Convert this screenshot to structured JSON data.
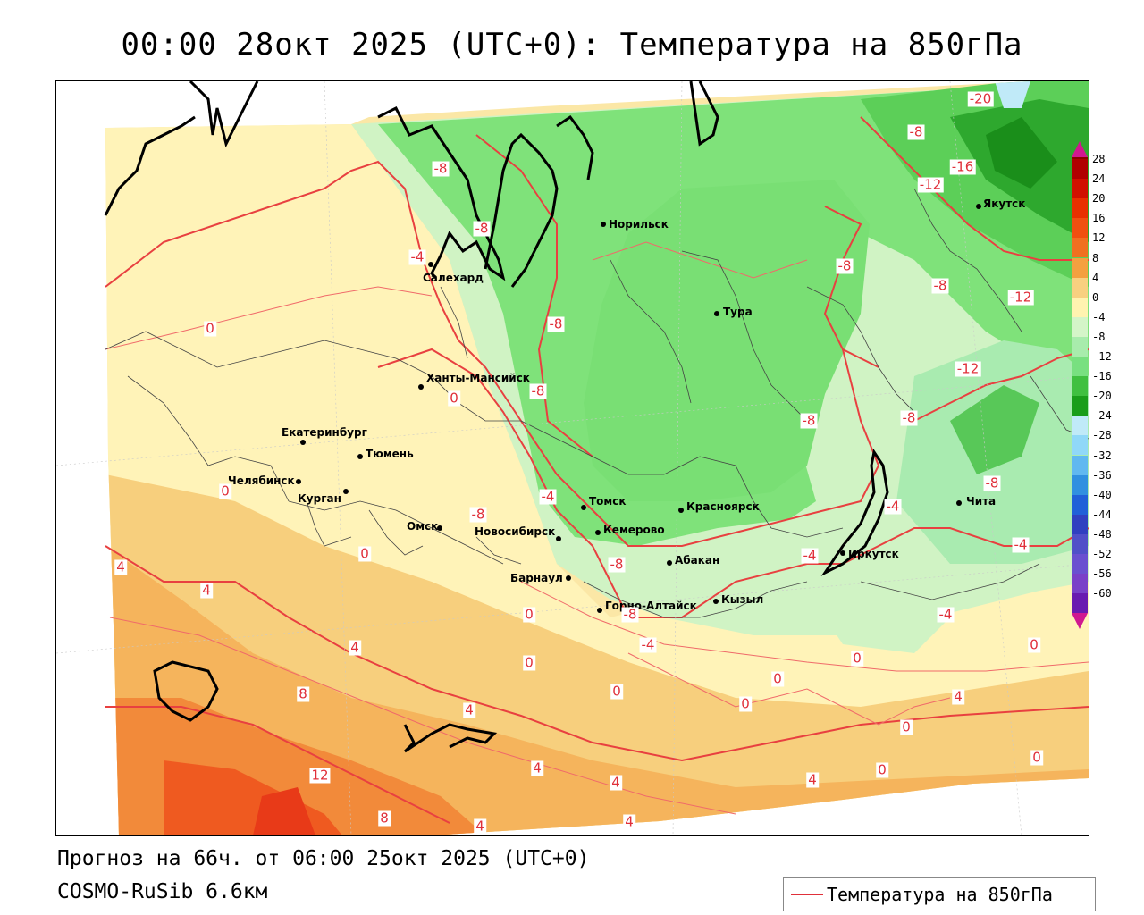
{
  "title": "00:00 28окт 2025 (UTC+0): Температура на 850гПа",
  "footer": {
    "forecast": "Прогноз на 66ч. от 06:00 25окт 2025 (UTC+0)",
    "model": "COSMO-RuSib 6.6км"
  },
  "legend": {
    "label": "Температура на 850гПа",
    "color": "#e0303a"
  },
  "colorbar": {
    "ticks": [
      "28",
      "24",
      "20",
      "16",
      "12",
      "8",
      "4",
      "0",
      "-4",
      "-8",
      "-12",
      "-16",
      "-20",
      "-24",
      "-28",
      "-32",
      "-36",
      "-40",
      "-44",
      "-48",
      "-52",
      "-56",
      "-60"
    ],
    "colors": [
      "#8b0000",
      "#b00000",
      "#d01000",
      "#e83000",
      "#f05010",
      "#f07020",
      "#f4a040",
      "#f8d080",
      "#fff3b0",
      "#d4f5c8",
      "#a8ecac",
      "#78e080",
      "#40c040",
      "#1a9e1a",
      "#c0eaf8",
      "#90d8f8",
      "#60b8f0",
      "#3090e0",
      "#2060d8",
      "#3040c0",
      "#5050c8",
      "#6a50d0",
      "#7a40c8",
      "#6a1ab0"
    ]
  },
  "cities": [
    {
      "name": "Норильск"
    },
    {
      "name": "Салехард"
    },
    {
      "name": "Тура"
    },
    {
      "name": "Якутск"
    },
    {
      "name": "Ханты-Мансийск"
    },
    {
      "name": "Екатеринбург"
    },
    {
      "name": "Тюмень"
    },
    {
      "name": "Челябинск"
    },
    {
      "name": "Курган"
    },
    {
      "name": "Омск"
    },
    {
      "name": "Новосибирск"
    },
    {
      "name": "Томск"
    },
    {
      "name": "Кемерово"
    },
    {
      "name": "Красноярск"
    },
    {
      "name": "Абакан"
    },
    {
      "name": "Барнаул"
    },
    {
      "name": "Горно-Алтайск"
    },
    {
      "name": "Кызыл"
    },
    {
      "name": "Иркутск"
    },
    {
      "name": "Чита"
    }
  ],
  "contour_labels": [
    "-20",
    "-8",
    "-16",
    "-12",
    "-8",
    "-8",
    "-4",
    "-8",
    "-8",
    "-12",
    "-8",
    "-8",
    "-8",
    "-12",
    "-8",
    "-8",
    "-8",
    "0",
    "0",
    "0",
    "-4",
    "-8",
    "-4",
    "-4",
    "-4",
    "-4",
    "-4",
    "4",
    "4",
    "0",
    "0",
    "4",
    "8",
    "4",
    "0",
    "0",
    "0",
    "0",
    "0",
    "4",
    "0",
    "12",
    "4",
    "4",
    "8",
    "4",
    "4",
    "0",
    "4",
    "0",
    "-8",
    "0"
  ]
}
